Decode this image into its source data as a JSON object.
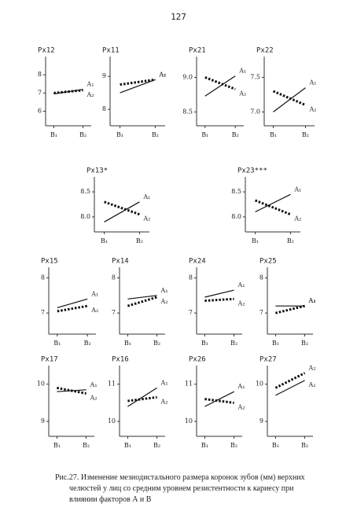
{
  "page_number": "127",
  "chart_data": [
    {
      "type": "line",
      "title": "Px12",
      "categories": [
        "B₁",
        "B₂"
      ],
      "ylim": [
        5.2,
        9.0
      ],
      "yticks": [
        6,
        7,
        8
      ],
      "series": [
        {
          "name": "A₁",
          "color": "#111",
          "dash": "solid",
          "values": [
            6.95,
            7.2
          ]
        },
        {
          "name": "A₂",
          "color": "#111",
          "dash": "dotted",
          "values": [
            7.0,
            7.15
          ]
        }
      ]
    },
    {
      "type": "line",
      "title": "Px11",
      "categories": [
        "B₁",
        "B₂"
      ],
      "ylim": [
        7.5,
        9.6
      ],
      "yticks": [
        8,
        9
      ],
      "series": [
        {
          "name": "A₁",
          "color": "#111",
          "dash": "solid",
          "values": [
            8.5,
            8.9
          ]
        },
        {
          "name": "A₂",
          "color": "#111",
          "dash": "dotted",
          "values": [
            8.75,
            8.9
          ]
        }
      ]
    },
    {
      "type": "line",
      "title": "Px21",
      "categories": [
        "B₁",
        "B₂"
      ],
      "ylim": [
        8.3,
        9.3
      ],
      "yticks": [
        {
          "value": 9,
          "label": "9.0"
        },
        8.5
      ],
      "series": [
        {
          "name": "A₁",
          "color": "#111",
          "dash": "solid",
          "values": [
            8.73,
            9.02
          ]
        },
        {
          "name": "A₂",
          "color": "#111",
          "dash": "dotted",
          "values": [
            9.0,
            8.83
          ]
        }
      ]
    },
    {
      "type": "line",
      "title": "Px22",
      "categories": [
        "B₁",
        "B₂"
      ],
      "ylim": [
        6.8,
        7.8
      ],
      "yticks": [
        7.5,
        {
          "value": 7,
          "label": "7.0"
        }
      ],
      "series": [
        {
          "name": "A₁",
          "color": "#111",
          "dash": "solid",
          "values": [
            7.0,
            7.35
          ]
        },
        {
          "name": "A₂",
          "color": "#111",
          "dash": "dotted",
          "values": [
            7.3,
            7.1
          ]
        }
      ]
    },
    {
      "type": "line",
      "title": "Px13*",
      "categories": [
        "B₁",
        "B₂"
      ],
      "ylim": [
        7.7,
        8.8
      ],
      "yticks": [
        8.5,
        {
          "value": 8,
          "label": "8.0"
        }
      ],
      "series": [
        {
          "name": "A₁",
          "color": "#111",
          "dash": "solid",
          "values": [
            7.9,
            8.3
          ]
        },
        {
          "name": "A₂",
          "color": "#111",
          "dash": "dotted",
          "values": [
            8.3,
            8.05
          ]
        }
      ]
    },
    {
      "type": "line",
      "title": "Px23***",
      "categories": [
        "B₁",
        "B₂"
      ],
      "ylim": [
        7.7,
        8.8
      ],
      "yticks": [
        8.5,
        {
          "value": 8,
          "label": "8.0"
        }
      ],
      "series": [
        {
          "name": "A₁",
          "color": "#111",
          "dash": "solid",
          "values": [
            8.1,
            8.45
          ]
        },
        {
          "name": "A₂",
          "color": "#111",
          "dash": "dotted",
          "values": [
            8.33,
            8.05
          ]
        }
      ]
    },
    {
      "type": "line",
      "title": "Px15",
      "categories": [
        "B₁",
        "B₂"
      ],
      "ylim": [
        6.4,
        8.3
      ],
      "yticks": [
        8,
        7
      ],
      "series": [
        {
          "name": "A₁",
          "color": "#111",
          "dash": "solid",
          "values": [
            7.15,
            7.4
          ]
        },
        {
          "name": "A₂",
          "color": "#111",
          "dash": "dotted",
          "values": [
            7.05,
            7.2
          ]
        }
      ]
    },
    {
      "type": "line",
      "title": "Px14",
      "categories": [
        "B₁",
        "B₂"
      ],
      "ylim": [
        6.4,
        8.3
      ],
      "yticks": [
        8,
        7
      ],
      "series": [
        {
          "name": "A₁",
          "color": "#111",
          "dash": "solid",
          "values": [
            7.4,
            7.5
          ]
        },
        {
          "name": "A₂",
          "color": "#111",
          "dash": "dotted",
          "values": [
            7.2,
            7.45
          ]
        }
      ]
    },
    {
      "type": "line",
      "title": "Px24",
      "categories": [
        "B₁",
        "B₂"
      ],
      "ylim": [
        6.4,
        8.3
      ],
      "yticks": [
        8,
        7
      ],
      "series": [
        {
          "name": "A₁",
          "color": "#111",
          "dash": "solid",
          "values": [
            7.45,
            7.65
          ]
        },
        {
          "name": "A₂",
          "color": "#111",
          "dash": "dotted",
          "values": [
            7.35,
            7.4
          ]
        }
      ]
    },
    {
      "type": "line",
      "title": "Px25",
      "categories": [
        "B₁",
        "B₂"
      ],
      "ylim": [
        6.4,
        8.3
      ],
      "yticks": [
        8,
        7
      ],
      "series": [
        {
          "name": "A₁",
          "color": "#111",
          "dash": "solid",
          "values": [
            7.2,
            7.2
          ]
        },
        {
          "name": "A₂",
          "color": "#111",
          "dash": "dotted",
          "values": [
            7.0,
            7.2
          ]
        }
      ]
    },
    {
      "type": "line",
      "title": "Px17",
      "categories": [
        "B₁",
        "B₂"
      ],
      "ylim": [
        8.6,
        10.5
      ],
      "yticks": [
        10,
        9
      ],
      "series": [
        {
          "name": "A₁",
          "color": "#111",
          "dash": "solid",
          "values": [
            9.8,
            9.85
          ]
        },
        {
          "name": "A₂",
          "color": "#111",
          "dash": "dotted",
          "values": [
            9.9,
            9.75
          ]
        }
      ]
    },
    {
      "type": "line",
      "title": "Px16",
      "categories": [
        "B₁",
        "B₂"
      ],
      "ylim": [
        9.6,
        11.5
      ],
      "yticks": [
        11,
        10
      ],
      "series": [
        {
          "name": "A₁",
          "color": "#111",
          "dash": "solid",
          "values": [
            10.4,
            10.9
          ]
        },
        {
          "name": "A₂",
          "color": "#111",
          "dash": "dotted",
          "values": [
            10.55,
            10.65
          ]
        }
      ]
    },
    {
      "type": "line",
      "title": "Px26",
      "categories": [
        "B₁",
        "B₂"
      ],
      "ylim": [
        9.6,
        11.5
      ],
      "yticks": [
        11,
        10
      ],
      "series": [
        {
          "name": "A₁",
          "color": "#111",
          "dash": "solid",
          "values": [
            10.4,
            10.8
          ]
        },
        {
          "name": "A₂",
          "color": "#111",
          "dash": "dotted",
          "values": [
            10.6,
            10.5
          ]
        }
      ]
    },
    {
      "type": "line",
      "title": "Px27",
      "categories": [
        "B₁",
        "B₂"
      ],
      "ylim": [
        8.6,
        10.5
      ],
      "yticks": [
        10,
        9
      ],
      "series": [
        {
          "name": "A₁",
          "color": "#111",
          "dash": "solid",
          "values": [
            9.7,
            10.1
          ]
        },
        {
          "name": "A₂",
          "color": "#111",
          "dash": "dotted",
          "values": [
            9.9,
            10.3
          ]
        }
      ]
    }
  ],
  "caption": [
    "Рис.27. Изменение мезиодистального размера коронок зубов (мм) верхних",
    "челюстей у лиц со средним уровнем резистентности к кариесу при",
    "влиянии факторов А и В"
  ]
}
